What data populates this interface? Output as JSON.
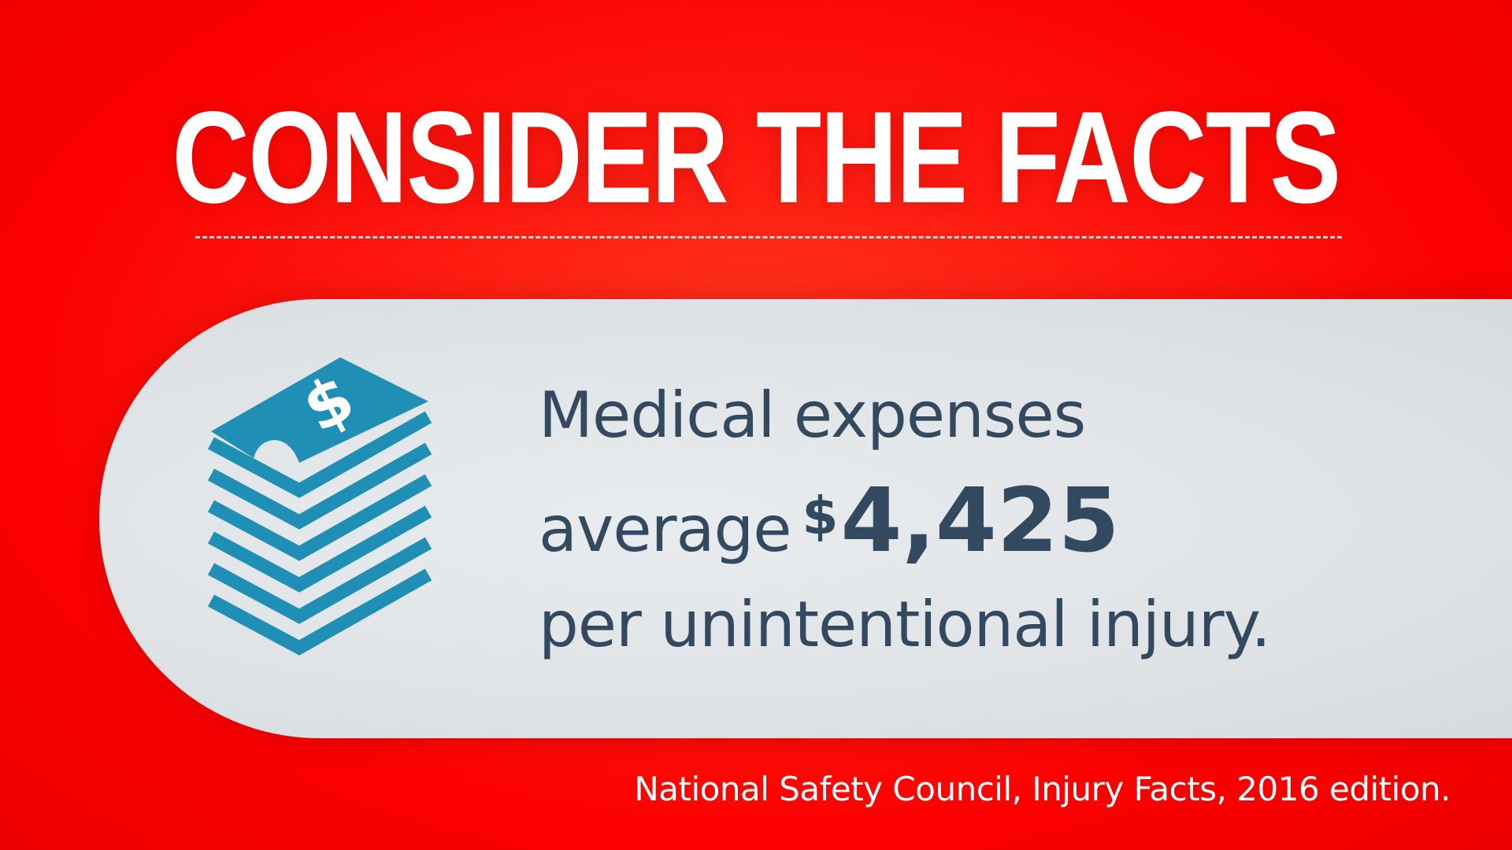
{
  "headline": "CONSIDER THE FACTS",
  "fact": {
    "line1": "Medical expenses",
    "line2_prefix": "average",
    "currency_symbol": "$",
    "amount": "4,425",
    "line3": "per unintentional injury."
  },
  "source": "National Safety Council, Injury Facts, 2016 edition.",
  "icon": {
    "name": "stack-of-money-icon",
    "glyph": "$"
  },
  "colors": {
    "background": "#fb0000",
    "panel": "#dfe3e5",
    "text": "#33495f",
    "icon": "#1f8fb5",
    "headline": "#ffffff"
  }
}
